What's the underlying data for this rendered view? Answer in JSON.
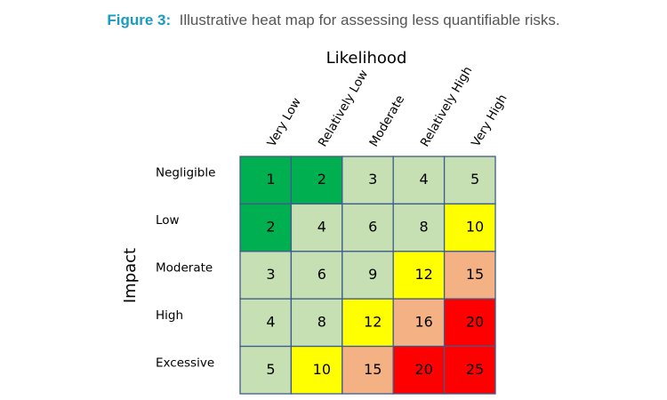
{
  "chart_data": {
    "type": "heatmap",
    "figure_label": "Figure 3:",
    "title": "Illustrative heat map for assessing less quantifiable risks.",
    "x_label": "Likelihood",
    "y_label": "Impact",
    "x_categories": [
      "Very Low",
      "Relatively Low",
      "Moderate",
      "Relatively High",
      "Very High"
    ],
    "y_categories": [
      "Negligible",
      "Low",
      "Moderate",
      "High",
      "Excessive"
    ],
    "values": [
      [
        1,
        2,
        3,
        4,
        5
      ],
      [
        2,
        4,
        6,
        8,
        10
      ],
      [
        3,
        6,
        9,
        12,
        15
      ],
      [
        4,
        8,
        12,
        16,
        20
      ],
      [
        5,
        10,
        15,
        20,
        25
      ]
    ],
    "colors": [
      [
        "#00b050",
        "#00b050",
        "#c6e0b4",
        "#c6e0b4",
        "#c6e0b4"
      ],
      [
        "#00b050",
        "#c6e0b4",
        "#c6e0b4",
        "#c6e0b4",
        "#ffff00"
      ],
      [
        "#c6e0b4",
        "#c6e0b4",
        "#c6e0b4",
        "#ffff00",
        "#f4b183"
      ],
      [
        "#c6e0b4",
        "#c6e0b4",
        "#ffff00",
        "#f4b183",
        "#ff0000"
      ],
      [
        "#c6e0b4",
        "#ffff00",
        "#f4b183",
        "#ff0000",
        "#ff0000"
      ]
    ]
  }
}
